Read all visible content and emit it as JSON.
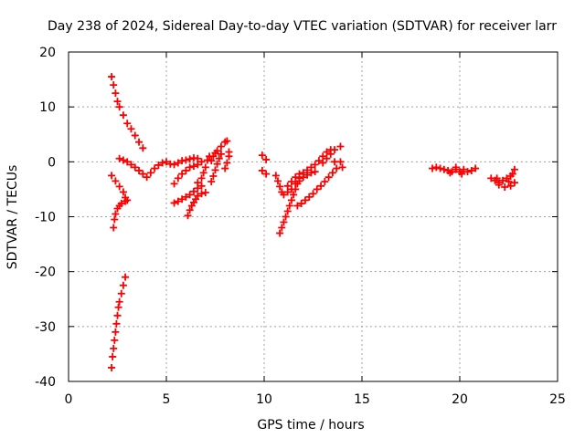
{
  "chart_data": {
    "type": "scatter",
    "title": "Day 238 of 2024, Sidereal Day-to-day VTEC variation (SDTVAR) for receiver larr",
    "xlabel": "GPS time / hours",
    "ylabel": "SDTVAR / TECUs",
    "xlim": [
      0,
      25
    ],
    "ylim": [
      -40,
      20
    ],
    "xticks": [
      0,
      5,
      10,
      15,
      20,
      25
    ],
    "yticks": [
      -40,
      -30,
      -20,
      -10,
      0,
      10,
      20
    ],
    "grid": true,
    "legend": "none",
    "marker": "plus",
    "marker_color": "#ff0000",
    "points": [
      [
        2.2,
        15.5
      ],
      [
        2.3,
        14.0
      ],
      [
        2.4,
        12.5
      ],
      [
        2.5,
        11.0
      ],
      [
        2.6,
        10.0
      ],
      [
        2.8,
        8.5
      ],
      [
        3.0,
        7.0
      ],
      [
        3.2,
        6.0
      ],
      [
        3.4,
        4.8
      ],
      [
        3.6,
        3.6
      ],
      [
        3.8,
        2.5
      ],
      [
        2.6,
        0.6
      ],
      [
        2.8,
        0.3
      ],
      [
        3.0,
        0.0
      ],
      [
        3.2,
        -0.5
      ],
      [
        3.4,
        -1.0
      ],
      [
        3.6,
        -1.6
      ],
      [
        3.8,
        -2.2
      ],
      [
        4.0,
        -2.8
      ],
      [
        4.2,
        -2.0
      ],
      [
        4.4,
        -1.2
      ],
      [
        4.6,
        -0.6
      ],
      [
        4.8,
        -0.2
      ],
      [
        5.0,
        0.0
      ],
      [
        5.2,
        -0.4
      ],
      [
        5.4,
        -0.5
      ],
      [
        5.6,
        -0.2
      ],
      [
        5.8,
        0.2
      ],
      [
        6.0,
        0.3
      ],
      [
        6.2,
        0.5
      ],
      [
        6.4,
        0.7
      ],
      [
        6.6,
        0.6
      ],
      [
        2.2,
        -2.5
      ],
      [
        2.4,
        -3.5
      ],
      [
        2.6,
        -4.5
      ],
      [
        2.8,
        -5.5
      ],
      [
        2.9,
        -6.5
      ],
      [
        3.0,
        -7.0
      ],
      [
        2.3,
        -12.0
      ],
      [
        2.35,
        -10.5
      ],
      [
        2.4,
        -9.5
      ],
      [
        2.5,
        -8.5
      ],
      [
        2.6,
        -8.0
      ],
      [
        2.7,
        -7.6
      ],
      [
        2.9,
        -7.2
      ],
      [
        2.2,
        -37.5
      ],
      [
        2.25,
        -35.5
      ],
      [
        2.3,
        -34.0
      ],
      [
        2.35,
        -32.5
      ],
      [
        2.4,
        -31.0
      ],
      [
        2.45,
        -29.5
      ],
      [
        2.5,
        -28.0
      ],
      [
        2.55,
        -26.5
      ],
      [
        2.6,
        -25.5
      ],
      [
        2.7,
        -24.0
      ],
      [
        2.8,
        -22.5
      ],
      [
        2.9,
        -21.0
      ],
      [
        5.4,
        -4.0
      ],
      [
        5.6,
        -3.0
      ],
      [
        5.8,
        -2.2
      ],
      [
        6.0,
        -1.6
      ],
      [
        6.2,
        -1.0
      ],
      [
        6.4,
        -0.8
      ],
      [
        6.6,
        -0.5
      ],
      [
        6.8,
        0.0
      ],
      [
        5.4,
        -7.5
      ],
      [
        5.6,
        -7.2
      ],
      [
        5.8,
        -6.8
      ],
      [
        6.0,
        -6.4
      ],
      [
        6.2,
        -6.0
      ],
      [
        6.4,
        -5.4
      ],
      [
        6.6,
        -4.8
      ],
      [
        6.8,
        -4.4
      ],
      [
        7.0,
        -5.6
      ],
      [
        6.1,
        -9.8
      ],
      [
        6.2,
        -8.8
      ],
      [
        6.3,
        -8.0
      ],
      [
        6.4,
        -7.4
      ],
      [
        6.5,
        -6.8
      ],
      [
        6.6,
        -6.2
      ],
      [
        6.8,
        -5.8
      ],
      [
        6.6,
        -3.8
      ],
      [
        6.8,
        -3.0
      ],
      [
        6.9,
        -2.0
      ],
      [
        7.0,
        -1.0
      ],
      [
        7.1,
        0.3
      ],
      [
        7.2,
        1.0
      ],
      [
        7.3,
        -3.6
      ],
      [
        7.4,
        -2.6
      ],
      [
        7.5,
        -1.5
      ],
      [
        7.6,
        -0.4
      ],
      [
        7.7,
        0.6
      ],
      [
        7.8,
        1.4
      ],
      [
        7.3,
        0.2
      ],
      [
        7.4,
        1.0
      ],
      [
        7.5,
        1.6
      ],
      [
        7.6,
        2.0
      ],
      [
        7.8,
        2.8
      ],
      [
        8.0,
        3.6
      ],
      [
        8.1,
        3.8
      ],
      [
        8.0,
        -1.2
      ],
      [
        8.1,
        -0.2
      ],
      [
        8.2,
        1.0
      ],
      [
        8.2,
        1.8
      ],
      [
        9.9,
        1.2
      ],
      [
        10.1,
        0.4
      ],
      [
        9.9,
        -1.6
      ],
      [
        10.1,
        -2.2
      ],
      [
        10.6,
        -2.5
      ],
      [
        10.7,
        -3.5
      ],
      [
        10.8,
        -4.5
      ],
      [
        10.9,
        -5.5
      ],
      [
        11.0,
        -6.0
      ],
      [
        11.2,
        -5.5
      ],
      [
        11.4,
        -5.0
      ],
      [
        11.6,
        -4.0
      ],
      [
        11.8,
        -3.0
      ],
      [
        12.0,
        -2.0
      ],
      [
        12.2,
        -1.5
      ],
      [
        12.4,
        -1.0
      ],
      [
        12.6,
        -0.5
      ],
      [
        12.8,
        0.2
      ],
      [
        13.0,
        1.0
      ],
      [
        13.2,
        1.8
      ],
      [
        13.4,
        2.2
      ],
      [
        10.8,
        -13.0
      ],
      [
        10.9,
        -12.0
      ],
      [
        11.0,
        -11.0
      ],
      [
        11.1,
        -10.0
      ],
      [
        11.2,
        -9.0
      ],
      [
        11.3,
        -8.0
      ],
      [
        11.4,
        -7.0
      ],
      [
        11.5,
        -6.0
      ],
      [
        11.6,
        -5.0
      ],
      [
        11.7,
        -4.0
      ],
      [
        11.8,
        -3.5
      ],
      [
        12.0,
        -2.8
      ],
      [
        12.2,
        -2.4
      ],
      [
        12.4,
        -2.0
      ],
      [
        12.6,
        -1.8
      ],
      [
        11.2,
        -4.4
      ],
      [
        11.4,
        -3.6
      ],
      [
        11.6,
        -2.8
      ],
      [
        11.8,
        -2.2
      ],
      [
        11.7,
        -8.0
      ],
      [
        11.9,
        -7.6
      ],
      [
        12.1,
        -7.0
      ],
      [
        12.3,
        -6.4
      ],
      [
        12.5,
        -5.8
      ],
      [
        12.7,
        -5.0
      ],
      [
        12.9,
        -4.4
      ],
      [
        13.1,
        -3.6
      ],
      [
        13.3,
        -2.8
      ],
      [
        13.5,
        -2.0
      ],
      [
        13.7,
        -1.2
      ],
      [
        13.6,
        0.0
      ],
      [
        13.0,
        -0.2
      ],
      [
        13.2,
        0.6
      ],
      [
        13.4,
        1.4
      ],
      [
        13.6,
        2.2
      ],
      [
        13.9,
        2.8
      ],
      [
        13.9,
        0.0
      ],
      [
        14.0,
        -1.0
      ],
      [
        18.6,
        -1.2
      ],
      [
        18.8,
        -1.0
      ],
      [
        19.0,
        -1.2
      ],
      [
        19.2,
        -1.4
      ],
      [
        19.4,
        -1.6
      ],
      [
        19.6,
        -1.8
      ],
      [
        19.8,
        -1.4
      ],
      [
        20.0,
        -1.8
      ],
      [
        20.2,
        -1.4
      ],
      [
        20.4,
        -1.8
      ],
      [
        20.6,
        -1.6
      ],
      [
        20.8,
        -1.2
      ],
      [
        19.5,
        -2.0
      ],
      [
        20.1,
        -2.2
      ],
      [
        19.8,
        -1.0
      ],
      [
        21.6,
        -3.0
      ],
      [
        21.8,
        -3.4
      ],
      [
        22.0,
        -3.8
      ],
      [
        22.2,
        -3.4
      ],
      [
        22.4,
        -3.0
      ],
      [
        22.6,
        -2.6
      ],
      [
        22.8,
        -1.4
      ],
      [
        22.0,
        -4.2
      ],
      [
        22.3,
        -4.6
      ],
      [
        22.6,
        -4.4
      ],
      [
        22.8,
        -3.8
      ],
      [
        21.9,
        -3.0
      ],
      [
        22.5,
        -3.6
      ],
      [
        22.7,
        -2.2
      ]
    ]
  }
}
